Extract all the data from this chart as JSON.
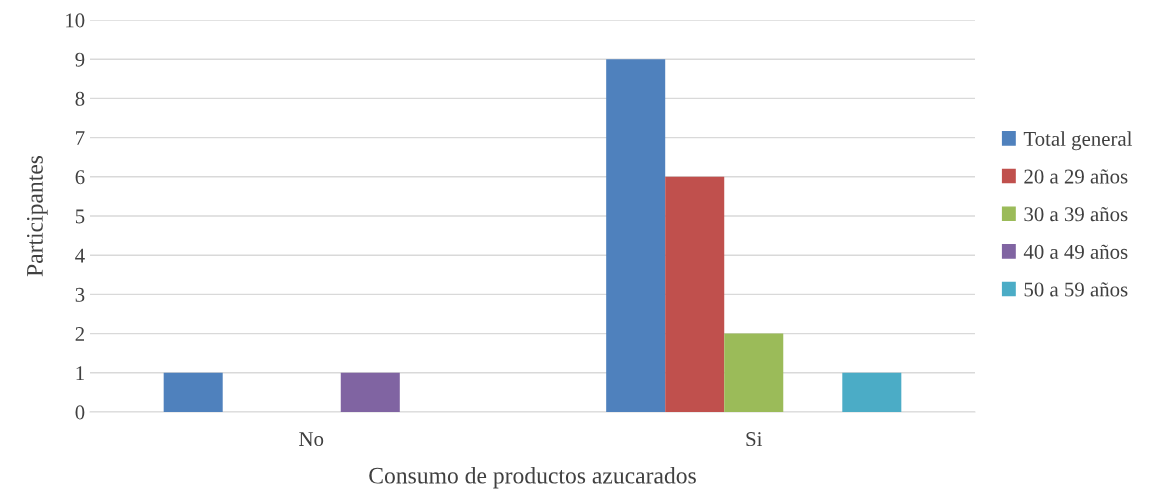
{
  "chart_data": {
    "type": "bar",
    "xlabel": "Consumo de productos azucarados",
    "ylabel": "Participantes",
    "categories": [
      "No",
      "Si"
    ],
    "series": [
      {
        "name": "Total general",
        "color": "#4f81bd",
        "values": [
          1,
          9
        ]
      },
      {
        "name": "20 a 29 años",
        "color": "#c0504d",
        "values": [
          0,
          6
        ]
      },
      {
        "name": "30 a 39 años",
        "color": "#9bbb59",
        "values": [
          0,
          2
        ]
      },
      {
        "name": "40 a 49 años",
        "color": "#8064a2",
        "values": [
          1,
          0
        ]
      },
      {
        "name": "50 a 59 años",
        "color": "#4bacc6",
        "values": [
          0,
          1
        ]
      }
    ],
    "ylim": [
      0,
      10
    ],
    "yticks": [
      0,
      1,
      2,
      3,
      4,
      5,
      6,
      7,
      8,
      9,
      10
    ],
    "grid": "y",
    "legend": "right"
  }
}
